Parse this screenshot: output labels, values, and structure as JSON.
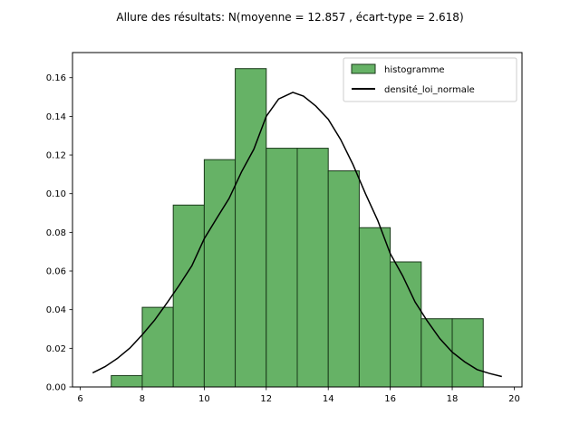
{
  "chart_data": {
    "type": "bar",
    "title": "Allure des résultats: N(moyenne = 12.857 , écart-type = 2.618)",
    "xlabel": "",
    "ylabel": "",
    "xlim": [
      5.75,
      20.25
    ],
    "ylim": [
      0,
      0.173
    ],
    "xticks": [
      6,
      8,
      10,
      12,
      14,
      16,
      18,
      20
    ],
    "yticks": [
      0.0,
      0.02,
      0.04,
      0.06,
      0.08,
      0.1,
      0.12,
      0.14,
      0.16
    ],
    "grid": false,
    "legend_position": "top-right",
    "series": [
      {
        "name": "histogramme",
        "kind": "histogram",
        "color": "#66b266",
        "edge_color": "#1a3a1a",
        "bins": [
          {
            "x0": 7,
            "x1": 8,
            "value": 0.0059
          },
          {
            "x0": 8,
            "x1": 9,
            "value": 0.0412
          },
          {
            "x0": 9,
            "x1": 10,
            "value": 0.0941
          },
          {
            "x0": 10,
            "x1": 11,
            "value": 0.1176
          },
          {
            "x0": 11,
            "x1": 12,
            "value": 0.1647
          },
          {
            "x0": 12,
            "x1": 13,
            "value": 0.1235
          },
          {
            "x0": 13,
            "x1": 14,
            "value": 0.1235
          },
          {
            "x0": 14,
            "x1": 15,
            "value": 0.1118
          },
          {
            "x0": 15,
            "x1": 16,
            "value": 0.0824
          },
          {
            "x0": 16,
            "x1": 17,
            "value": 0.0647
          },
          {
            "x0": 17,
            "x1": 18,
            "value": 0.0353
          },
          {
            "x0": 18,
            "x1": 19,
            "value": 0.0353
          }
        ]
      },
      {
        "name": "densité_loi_normale",
        "kind": "line",
        "color": "#000000",
        "x": [
          6.4,
          6.8,
          7.2,
          7.6,
          8.0,
          8.4,
          8.8,
          9.2,
          9.6,
          10.0,
          10.4,
          10.8,
          11.2,
          11.6,
          12.0,
          12.4,
          12.857,
          13.2,
          13.6,
          14.0,
          14.4,
          14.8,
          15.2,
          15.6,
          16.0,
          16.4,
          16.8,
          17.2,
          17.6,
          18.0,
          18.4,
          18.8,
          19.2,
          19.6
        ],
        "y": [
          0.0073,
          0.0105,
          0.0148,
          0.0201,
          0.027,
          0.0346,
          0.0435,
          0.0528,
          0.0627,
          0.0767,
          0.0872,
          0.0975,
          0.1112,
          0.123,
          0.14,
          0.149,
          0.1524,
          0.1505,
          0.1453,
          0.1385,
          0.128,
          0.115,
          0.1,
          0.086,
          0.069,
          0.0575,
          0.044,
          0.034,
          0.025,
          0.018,
          0.013,
          0.009,
          0.007,
          0.0054
        ]
      }
    ]
  }
}
